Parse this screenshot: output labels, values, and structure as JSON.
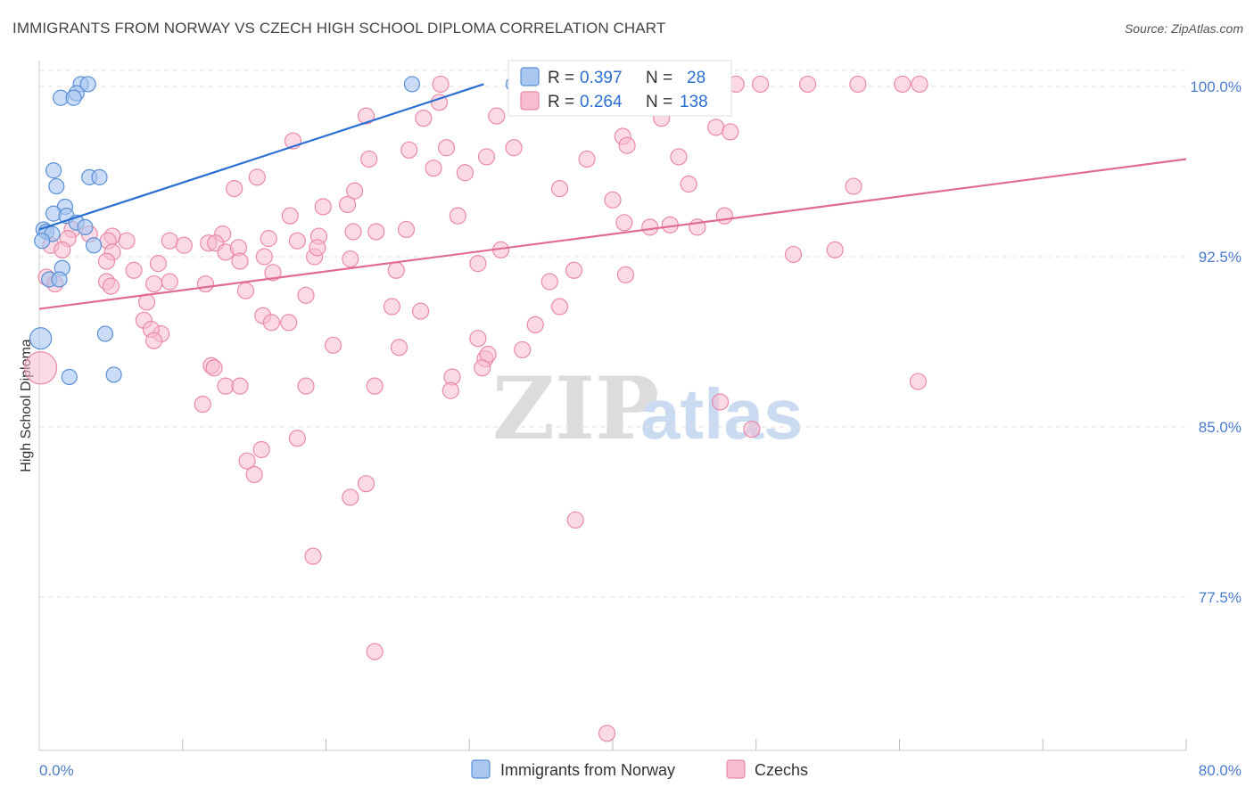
{
  "title": "IMMIGRANTS FROM NORWAY VS CZECH HIGH SCHOOL DIPLOMA CORRELATION CHART",
  "source": "Source: ZipAtlas.com",
  "watermark": {
    "zip": "ZIP",
    "atlas": "atlas"
  },
  "colors": {
    "norway_fill": "#a9c7f0",
    "norway_stroke": "#5b8fd6",
    "norway_line": "#2a6fd1",
    "czech_fill": "#f7bcd0",
    "czech_stroke": "#e88aa8",
    "czech_line": "#e06b97",
    "grid": "#e2e2e2",
    "axis": "#cccccc",
    "tick_text": "#4a7cc9"
  },
  "legend": {
    "rows": [
      {
        "r_label": "R =",
        "r_value": "0.397",
        "n_label": "N =",
        "n_value": "28"
      },
      {
        "r_label": "R =",
        "r_value": "0.264",
        "n_label": "N =",
        "n_value": "138"
      }
    ]
  },
  "bottom_legend": [
    "Immigrants from Norway",
    "Czechs"
  ],
  "chart_data": {
    "type": "scatter",
    "title": "IMMIGRANTS FROM NORWAY VS CZECH HIGH SCHOOL DIPLOMA CORRELATION CHART",
    "xlabel": "",
    "ylabel": "High School Diploma",
    "xlim": [
      0,
      80
    ],
    "ylim": [
      71.5,
      100.7
    ],
    "x_tick_labels": [
      "0.0%",
      "80.0%"
    ],
    "y_ticks": [
      {
        "value": 100.0,
        "label": "100.0%"
      },
      {
        "value": 92.5,
        "label": "92.5%"
      },
      {
        "value": 85.0,
        "label": "85.0%"
      },
      {
        "value": 77.5,
        "label": "77.5%"
      }
    ],
    "series": [
      {
        "name": "Immigrants from Norway",
        "r": 0.397,
        "n": 28,
        "trend": [
          [
            0,
            93.7
          ],
          [
            31,
            100.1
          ]
        ],
        "points": [
          [
            2.9,
            100.1
          ],
          [
            3.4,
            100.1
          ],
          [
            26.0,
            100.1
          ],
          [
            33.1,
            100.1
          ],
          [
            2.6,
            99.7
          ],
          [
            1.5,
            99.5
          ],
          [
            2.4,
            99.5
          ],
          [
            1.0,
            96.3
          ],
          [
            3.5,
            96.0
          ],
          [
            4.2,
            96.0
          ],
          [
            1.2,
            95.6
          ],
          [
            1.8,
            94.7
          ],
          [
            1.0,
            94.4
          ],
          [
            1.9,
            94.3
          ],
          [
            2.6,
            94.0
          ],
          [
            3.2,
            93.8
          ],
          [
            0.3,
            93.7
          ],
          [
            0.5,
            93.6
          ],
          [
            0.9,
            93.5
          ],
          [
            0.2,
            93.2
          ],
          [
            3.8,
            93.0
          ],
          [
            1.6,
            92.0
          ],
          [
            0.7,
            91.5
          ],
          [
            1.4,
            91.5
          ],
          [
            0.1,
            88.9
          ],
          [
            4.6,
            89.1
          ],
          [
            5.2,
            87.3
          ],
          [
            2.1,
            87.2
          ]
        ]
      },
      {
        "name": "Czechs",
        "r": 0.264,
        "n": 138,
        "trend": [
          [
            0,
            90.2
          ],
          [
            80,
            96.8
          ]
        ],
        "points": [
          [
            28.0,
            100.1
          ],
          [
            33.5,
            100.1
          ],
          [
            44.2,
            100.1
          ],
          [
            46.0,
            100.1
          ],
          [
            48.6,
            100.1
          ],
          [
            50.3,
            100.1
          ],
          [
            53.6,
            100.1
          ],
          [
            57.1,
            100.1
          ],
          [
            60.2,
            100.1
          ],
          [
            61.4,
            100.1
          ],
          [
            27.9,
            99.3
          ],
          [
            34.6,
            99.2
          ],
          [
            22.8,
            98.7
          ],
          [
            26.8,
            98.6
          ],
          [
            31.9,
            98.7
          ],
          [
            43.4,
            98.6
          ],
          [
            47.2,
            98.2
          ],
          [
            40.7,
            97.8
          ],
          [
            17.7,
            97.6
          ],
          [
            28.4,
            97.3
          ],
          [
            25.8,
            97.2
          ],
          [
            33.1,
            97.3
          ],
          [
            31.2,
            96.9
          ],
          [
            23.0,
            96.8
          ],
          [
            38.2,
            96.8
          ],
          [
            44.6,
            96.9
          ],
          [
            41.0,
            97.4
          ],
          [
            27.5,
            96.4
          ],
          [
            29.7,
            96.2
          ],
          [
            15.2,
            96.0
          ],
          [
            13.6,
            95.5
          ],
          [
            22.0,
            95.4
          ],
          [
            36.3,
            95.5
          ],
          [
            45.3,
            95.7
          ],
          [
            56.8,
            95.6
          ],
          [
            40.0,
            95.0
          ],
          [
            19.8,
            94.7
          ],
          [
            21.5,
            94.8
          ],
          [
            17.5,
            94.3
          ],
          [
            29.2,
            94.3
          ],
          [
            47.8,
            94.3
          ],
          [
            40.8,
            94.0
          ],
          [
            44.0,
            93.9
          ],
          [
            45.9,
            93.8
          ],
          [
            42.6,
            93.8
          ],
          [
            25.6,
            93.7
          ],
          [
            21.9,
            93.6
          ],
          [
            19.5,
            93.4
          ],
          [
            23.5,
            93.6
          ],
          [
            12.8,
            93.5
          ],
          [
            16.0,
            93.3
          ],
          [
            18.0,
            93.2
          ],
          [
            9.1,
            93.2
          ],
          [
            11.8,
            93.1
          ],
          [
            12.3,
            93.1
          ],
          [
            2.3,
            93.7
          ],
          [
            3.5,
            93.5
          ],
          [
            5.1,
            93.4
          ],
          [
            4.8,
            93.2
          ],
          [
            2.0,
            93.3
          ],
          [
            0.8,
            93.0
          ],
          [
            1.6,
            92.8
          ],
          [
            5.1,
            92.7
          ],
          [
            6.1,
            93.2
          ],
          [
            10.1,
            93.0
          ],
          [
            13.0,
            92.7
          ],
          [
            13.9,
            92.9
          ],
          [
            15.7,
            92.5
          ],
          [
            14.0,
            92.3
          ],
          [
            19.2,
            92.5
          ],
          [
            19.4,
            92.9
          ],
          [
            21.7,
            92.4
          ],
          [
            32.2,
            92.8
          ],
          [
            55.5,
            92.8
          ],
          [
            52.6,
            92.6
          ],
          [
            30.6,
            92.2
          ],
          [
            24.9,
            91.9
          ],
          [
            8.3,
            92.2
          ],
          [
            4.7,
            92.3
          ],
          [
            6.6,
            91.9
          ],
          [
            9.1,
            91.4
          ],
          [
            8.0,
            91.3
          ],
          [
            14.4,
            91.0
          ],
          [
            16.3,
            91.8
          ],
          [
            37.3,
            91.9
          ],
          [
            40.9,
            91.7
          ],
          [
            35.6,
            91.4
          ],
          [
            0.5,
            91.6
          ],
          [
            4.7,
            91.4
          ],
          [
            1.1,
            91.3
          ],
          [
            11.6,
            91.3
          ],
          [
            5.0,
            91.2
          ],
          [
            18.6,
            90.8
          ],
          [
            7.5,
            90.5
          ],
          [
            24.6,
            90.3
          ],
          [
            26.6,
            90.1
          ],
          [
            36.3,
            90.3
          ],
          [
            15.6,
            89.9
          ],
          [
            16.2,
            89.6
          ],
          [
            17.4,
            89.6
          ],
          [
            34.6,
            89.5
          ],
          [
            7.3,
            89.7
          ],
          [
            8.5,
            89.1
          ],
          [
            7.8,
            89.3
          ],
          [
            8.0,
            88.8
          ],
          [
            30.6,
            88.9
          ],
          [
            20.5,
            88.6
          ],
          [
            25.1,
            88.5
          ],
          [
            31.1,
            88.0
          ],
          [
            33.7,
            88.4
          ],
          [
            31.3,
            88.2
          ],
          [
            12.0,
            87.7
          ],
          [
            12.2,
            87.6
          ],
          [
            30.9,
            87.6
          ],
          [
            28.8,
            87.2
          ],
          [
            13.0,
            86.8
          ],
          [
            14.0,
            86.8
          ],
          [
            18.6,
            86.8
          ],
          [
            23.4,
            86.8
          ],
          [
            28.7,
            86.6
          ],
          [
            0.1,
            87.6
          ],
          [
            61.3,
            87.0
          ],
          [
            11.4,
            86.0
          ],
          [
            47.5,
            86.1
          ],
          [
            49.7,
            84.9
          ],
          [
            18.0,
            84.5
          ],
          [
            15.5,
            84.0
          ],
          [
            14.5,
            83.5
          ],
          [
            15.0,
            82.9
          ],
          [
            22.8,
            82.5
          ],
          [
            21.7,
            81.9
          ],
          [
            37.4,
            80.9
          ],
          [
            19.1,
            79.3
          ],
          [
            23.4,
            75.1
          ],
          [
            39.6,
            71.5
          ],
          [
            35.0,
            99.6
          ],
          [
            36.5,
            99.4
          ],
          [
            48.2,
            98.0
          ]
        ]
      }
    ]
  }
}
